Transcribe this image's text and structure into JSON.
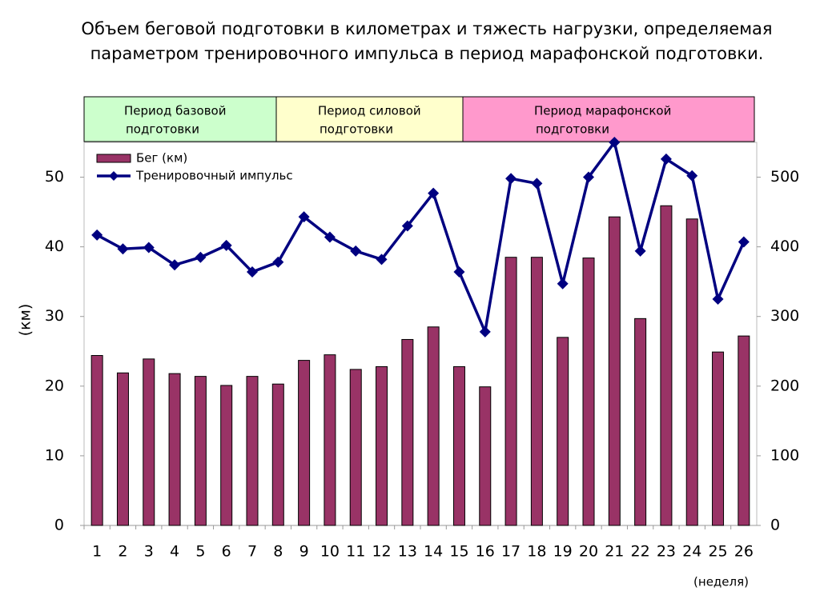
{
  "chart_data": {
    "type": "bar",
    "title": [
      "Объем беговой подготовки в километрах и тяжесть нагрузки, определяемая",
      "параметром тренировочного импульса в период марафонской подготовки."
    ],
    "periods": [
      {
        "lines": [
          "Период базовой",
          "подготовки"
        ],
        "color": "#ccffcc"
      },
      {
        "lines": [
          "Период силовой",
          "подготовки"
        ],
        "color": "#ffffcc"
      },
      {
        "lines": [
          "Период марафонской",
          "подготовки"
        ],
        "color": "#ff99cc"
      }
    ],
    "y_label": "(км)",
    "x_label": "(неделя)",
    "categories": [
      "1",
      "2",
      "3",
      "4",
      "5",
      "6",
      "7",
      "8",
      "9",
      "10",
      "11",
      "12",
      "13",
      "14",
      "15",
      "16",
      "17",
      "18",
      "19",
      "20",
      "21",
      "22",
      "23",
      "24",
      "25",
      "26"
    ],
    "series": [
      {
        "name": "Бег (км)",
        "type": "bar",
        "color": "#993366",
        "values": [
          24.4,
          21.9,
          23.9,
          21.8,
          21.4,
          20.1,
          21.4,
          20.3,
          23.7,
          24.5,
          22.4,
          22.8,
          26.7,
          28.5,
          22.8,
          19.9,
          38.5,
          38.5,
          27.0,
          38.4,
          44.3,
          29.7,
          45.9,
          44.0,
          24.9,
          27.2
        ]
      },
      {
        "name": "Тренировочный импульс",
        "type": "line",
        "axis": "y2",
        "color": "#000080",
        "values": [
          417,
          397,
          399,
          374,
          385,
          402,
          364,
          378,
          443,
          414,
          394,
          382,
          430,
          477,
          364,
          278,
          498,
          491,
          347,
          500,
          550,
          394,
          526,
          502,
          325,
          407
        ]
      }
    ],
    "ylim": [
      0,
      55
    ],
    "yticks": [
      0,
      10,
      20,
      30,
      40,
      50
    ],
    "y2lim": [
      0,
      550
    ],
    "y2ticks": [
      0,
      100,
      200,
      300,
      400,
      500
    ]
  }
}
